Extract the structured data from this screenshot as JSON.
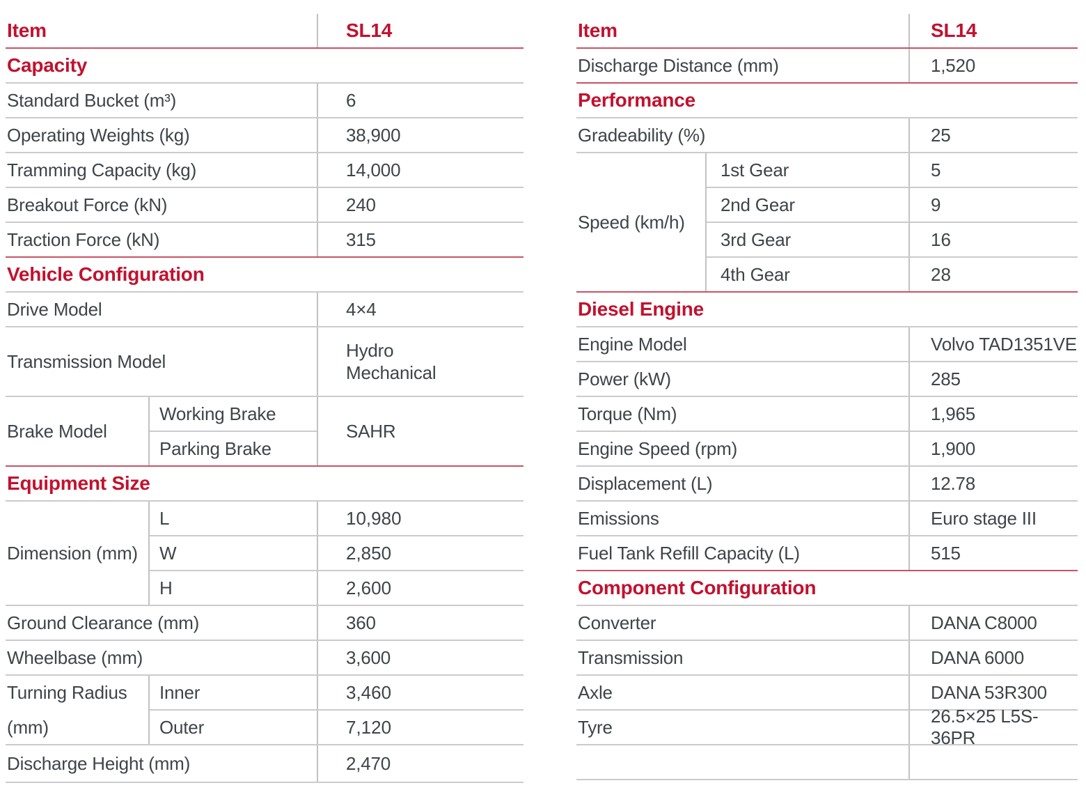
{
  "colors": {
    "accent_red": "#c2112e",
    "red_line": "#c75365",
    "gray_line": "#cbcbcb",
    "text": "#3f4449"
  },
  "left": {
    "header": {
      "item": "Item",
      "model": "SL14"
    },
    "sections": [
      {
        "title": "Capacity",
        "rows": [
          {
            "label": "Standard Bucket (m³)",
            "value": "6"
          },
          {
            "label": "Operating Weights (kg)",
            "value": "38,900"
          },
          {
            "label": "Tramming Capacity (kg)",
            "value": "14,000"
          },
          {
            "label": "Breakout Force (kN)",
            "value": "240"
          },
          {
            "label": "Traction Force (kN)",
            "value": "315"
          }
        ]
      },
      {
        "title": "Vehicle Configuration",
        "rows": [
          {
            "label": "Drive Model",
            "value": "4×4"
          },
          {
            "label": "Transmission Model",
            "value": "Hydro Mechanical"
          },
          {
            "label": "Brake Model",
            "value": "SAHR",
            "subrows": [
              {
                "sub": "Working Brake"
              },
              {
                "sub": "Parking Brake"
              }
            ]
          }
        ]
      },
      {
        "title": "Equipment Size",
        "rows": [
          {
            "label": "Dimension (mm)",
            "subrows": [
              {
                "sub": "L",
                "value": "10,980"
              },
              {
                "sub": "W",
                "value": "2,850"
              },
              {
                "sub": "H",
                "value": "2,600"
              }
            ]
          },
          {
            "label": "Ground Clearance (mm)",
            "value": "360"
          },
          {
            "label": "Wheelbase (mm)",
            "value": "3,600"
          },
          {
            "label": "Turning Radius (mm)",
            "subrows": [
              {
                "sub": "Inner",
                "value": "3,460"
              },
              {
                "sub": "Outer",
                "value": "7,120"
              }
            ]
          },
          {
            "label": "Discharge Height (mm)",
            "value": "2,470"
          }
        ]
      }
    ]
  },
  "right": {
    "header": {
      "item": "Item",
      "model": "SL14"
    },
    "lead_row": {
      "label": "Discharge Distance (mm)",
      "value": "1,520"
    },
    "sections": [
      {
        "title": "Performance",
        "rows": [
          {
            "label": "Gradeability (%)",
            "value": "25"
          },
          {
            "label": "Speed (km/h)",
            "subrows": [
              {
                "sub": "1st Gear",
                "value": "5"
              },
              {
                "sub": "2nd Gear",
                "value": "9"
              },
              {
                "sub": "3rd Gear",
                "value": "16"
              },
              {
                "sub": "4th Gear",
                "value": "28"
              }
            ]
          }
        ]
      },
      {
        "title": "Diesel Engine",
        "rows": [
          {
            "label": "Engine Model",
            "value": "Volvo TAD1351VE"
          },
          {
            "label": "Power (kW)",
            "value": "285"
          },
          {
            "label": "Torque (Nm)",
            "value": "1,965"
          },
          {
            "label": "Engine Speed (rpm)",
            "value": "1,900"
          },
          {
            "label": "Displacement (L)",
            "value": "12.78"
          },
          {
            "label": "Emissions",
            "value": "Euro stage III"
          },
          {
            "label": "Fuel Tank Refill Capacity (L)",
            "value": "515"
          }
        ]
      },
      {
        "title": "Component Configuration",
        "rows": [
          {
            "label": "Converter",
            "value": "DANA C8000"
          },
          {
            "label": "Transmission",
            "value": "DANA 6000"
          },
          {
            "label": "Axle",
            "value": "DANA 53R300"
          },
          {
            "label": "Tyre",
            "value": "26.5×25 L5S-36PR"
          },
          {
            "label": "",
            "value": ""
          }
        ]
      }
    ]
  }
}
